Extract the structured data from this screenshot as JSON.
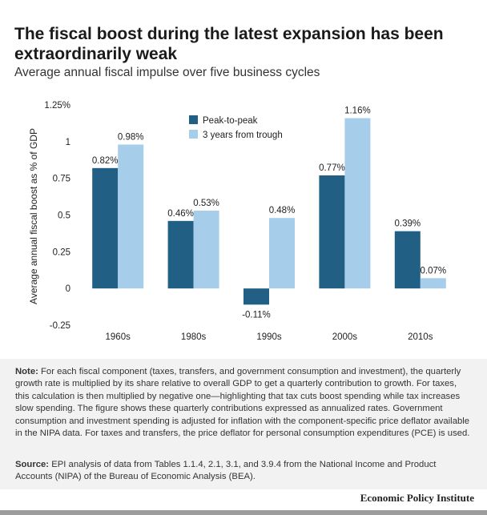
{
  "header": {
    "title": "The fiscal boost during the latest expansion has been extraordinarily weak",
    "subtitle": "Average annual fiscal impulse over five business cycles"
  },
  "chart_data": {
    "type": "bar",
    "categories": [
      "1960s",
      "1980s",
      "1990s",
      "2000s",
      "2010s"
    ],
    "series": [
      {
        "name": "Peak-to-peak",
        "color": "#215f84",
        "values": [
          0.82,
          0.46,
          -0.11,
          0.77,
          0.39
        ],
        "labels": [
          "0.82%",
          "0.46%",
          "-0.11%",
          "0.77%",
          "0.39%"
        ]
      },
      {
        "name": "3 years from trough",
        "color": "#a6cdea",
        "values": [
          0.98,
          0.53,
          0.48,
          1.16,
          0.07
        ],
        "labels": [
          "0.98%",
          "0.53%",
          "0.48%",
          "1.16%",
          "0.07%"
        ]
      }
    ],
    "ylabel": "Average annual fiscal boost as % of GDP",
    "ylim": [
      -0.25,
      1.25
    ],
    "yticks": [
      -0.25,
      0,
      0.25,
      0.5,
      0.75,
      1,
      1.25
    ],
    "ytick_labels": [
      "-0.25",
      "0",
      "0.25",
      "0.5",
      "0.75",
      "1",
      "1.25%"
    ],
    "legend_position": "top-center",
    "grid": false
  },
  "footer": {
    "note_label": "Note:",
    "note_text": " For each fiscal component (taxes, transfers, and government consumption and investment), the quarterly growth rate is multiplied by its share relative to overall GDP to get a quarterly contribution to growth. For taxes, this calculation is then multiplied by negative one—highlighting that tax cuts boost spending while tax increases slow spending. The figure shows these quarterly contributions expressed as annualized rates. Government consumption and investment spending is adjusted for inflation with the component-specific price deflator available in the NIPA data. For taxes and transfers, the price deflator for personal consumption expenditures (PCE) is used.",
    "source_label": "Source:",
    "source_text": " EPI analysis of data from Tables 1.1.4, 2.1, 3.1, and 3.9.4 from the National Income and Product Accounts (NIPA) of the Bureau of Economic Analysis (BEA).",
    "brand": "Economic Policy Institute"
  }
}
